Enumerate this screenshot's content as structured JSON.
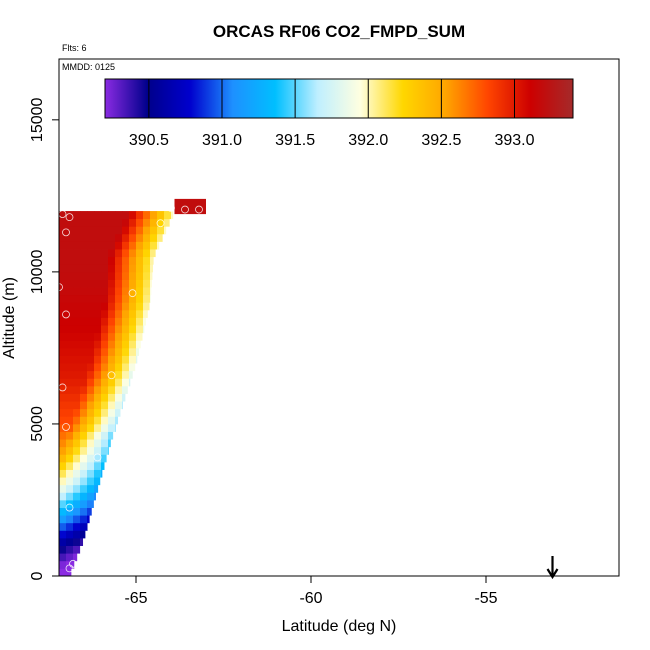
{
  "chart_data": {
    "type": "heatmap",
    "title": "ORCAS RF06 CO2_FMPD_SUM",
    "subtitle_flights": "Flts: 6",
    "subtitle_date": "MMDD: 0125",
    "xlabel": "Latitude (deg N)",
    "ylabel": "Altitude (m)",
    "xlim": [
      -67.2,
      -51.2
    ],
    "ylim": [
      0,
      17000
    ],
    "xticks": [
      -65,
      -60,
      -55
    ],
    "xtick_labels": [
      "-65",
      "-60",
      "-55"
    ],
    "yticks": [
      0,
      5000,
      10000,
      15000
    ],
    "ytick_labels": [
      "0",
      "5000",
      "10000",
      "15000"
    ],
    "colorbar": {
      "range": [
        390.2,
        393.4
      ],
      "ticks": [
        390.5,
        391.0,
        391.5,
        392.0,
        392.5,
        393.0
      ],
      "tick_labels": [
        "390.5",
        "391.0",
        "391.5",
        "392.0",
        "392.5",
        "393.0"
      ],
      "colors": [
        "#8a2be2",
        "#00008b",
        "#0000cd",
        "#1e90ff",
        "#00bfff",
        "#bfefff",
        "#ffffe0",
        "#ffd700",
        "#ffa500",
        "#ff4500",
        "#cd0000",
        "#a52a2a"
      ]
    },
    "profile": [
      {
        "alt": 200,
        "value": 390.4
      },
      {
        "alt": 1000,
        "value": 390.8
      },
      {
        "alt": 2000,
        "value": 391.5
      },
      {
        "alt": 3000,
        "value": 392.1
      },
      {
        "alt": 4000,
        "value": 392.5
      },
      {
        "alt": 5000,
        "value": 392.8
      },
      {
        "alt": 6500,
        "value": 393.0
      },
      {
        "alt": 8000,
        "value": 393.1
      },
      {
        "alt": 10000,
        "value": 393.2
      },
      {
        "alt": 11900,
        "value": 393.2
      }
    ],
    "edge": [
      {
        "alt": 0,
        "lat": -66.9
      },
      {
        "alt": 1200,
        "lat": -66.5
      },
      {
        "alt": 4500,
        "lat": -65.7
      },
      {
        "alt": 7000,
        "lat": -65.0
      },
      {
        "alt": 9000,
        "lat": -64.6
      },
      {
        "alt": 10500,
        "lat": -64.5
      },
      {
        "alt": 12000,
        "lat": -63.9
      }
    ],
    "flight_points": [
      {
        "lat": -66.9,
        "alt": 250
      },
      {
        "lat": -66.8,
        "alt": 400
      },
      {
        "lat": -66.9,
        "alt": 2250
      },
      {
        "lat": -66.1,
        "alt": 3900
      },
      {
        "lat": -67.0,
        "alt": 4900
      },
      {
        "lat": -67.1,
        "alt": 6200
      },
      {
        "lat": -65.7,
        "alt": 6600
      },
      {
        "lat": -67.0,
        "alt": 8600
      },
      {
        "lat": -67.2,
        "alt": 9500
      },
      {
        "lat": -65.1,
        "alt": 9300
      },
      {
        "lat": -67.0,
        "alt": 11300
      },
      {
        "lat": -64.3,
        "alt": 11600
      },
      {
        "lat": -67.1,
        "alt": 11900
      },
      {
        "lat": -66.9,
        "alt": 11800
      },
      {
        "lat": -64.0,
        "alt": 12100
      },
      {
        "lat": -63.6,
        "alt": 12050
      },
      {
        "lat": -63.2,
        "alt": 12050
      }
    ],
    "top_strip": {
      "lat_start": -63.9,
      "lat_end": -63.0,
      "alt_start": 11900,
      "alt_end": 12400,
      "value": 393.2
    },
    "arrow_lat": -53.1
  }
}
